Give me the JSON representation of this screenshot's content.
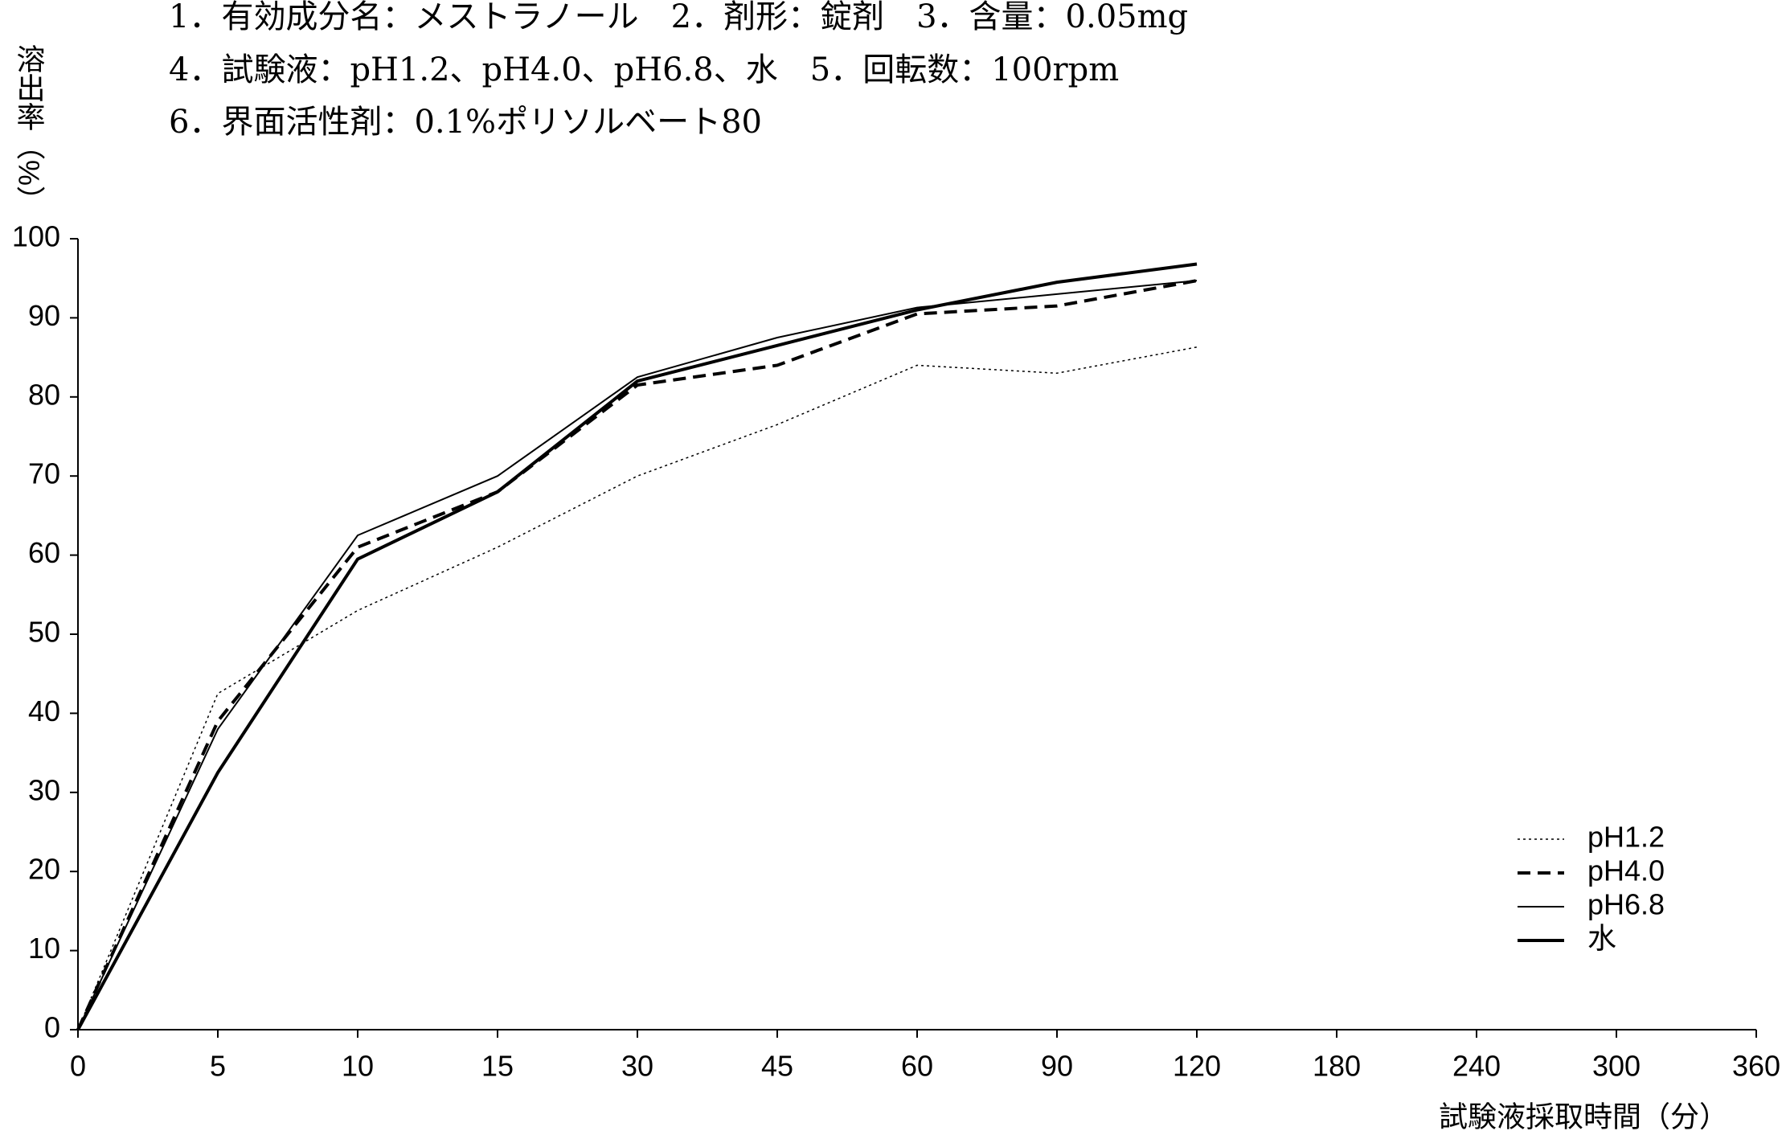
{
  "chart_data": {
    "type": "line",
    "notes": [
      "1．有効成分名：メストラノール　2．剤形：錠剤　3．含量：0.05mg",
      "4．試験液：pH1.2、pH4.0、pH6.8、水　5．回転数：100rpm",
      "6．界面活性剤：0.1%ポリソルベート80"
    ],
    "y_label": "溶出率（%）",
    "x_label": "試験液採取時間（分）",
    "categories": [
      "0",
      "5",
      "10",
      "15",
      "30",
      "45",
      "60",
      "90",
      "120",
      "180",
      "240",
      "300",
      "360"
    ],
    "ylim": [
      0,
      100
    ],
    "yticks": [
      0,
      10,
      20,
      30,
      40,
      50,
      60,
      70,
      80,
      90,
      100
    ],
    "legend": "lower-right",
    "series": [
      {
        "name": "pH1.2",
        "color": "#000000",
        "style": "dotted",
        "values": [
          0,
          42.5,
          53,
          61,
          70,
          76.5,
          84,
          83,
          86.3,
          null,
          null,
          null,
          null
        ]
      },
      {
        "name": "pH4.0",
        "color": "#000000",
        "style": "dashed",
        "values": [
          0,
          39,
          61,
          68,
          81.5,
          84,
          90.5,
          91.5,
          94.7,
          null,
          null,
          null,
          null
        ]
      },
      {
        "name": "pH6.8",
        "color": "#000000",
        "style": "thin",
        "values": [
          0,
          38,
          62.5,
          70,
          82.5,
          87.5,
          91.3,
          93,
          94.7,
          null,
          null,
          null,
          null
        ]
      },
      {
        "name": "水",
        "color": "#000000",
        "style": "thick",
        "values": [
          0,
          32.5,
          59.5,
          68,
          82,
          86.5,
          91,
          94.5,
          96.8,
          null,
          null,
          null,
          null
        ]
      }
    ]
  }
}
